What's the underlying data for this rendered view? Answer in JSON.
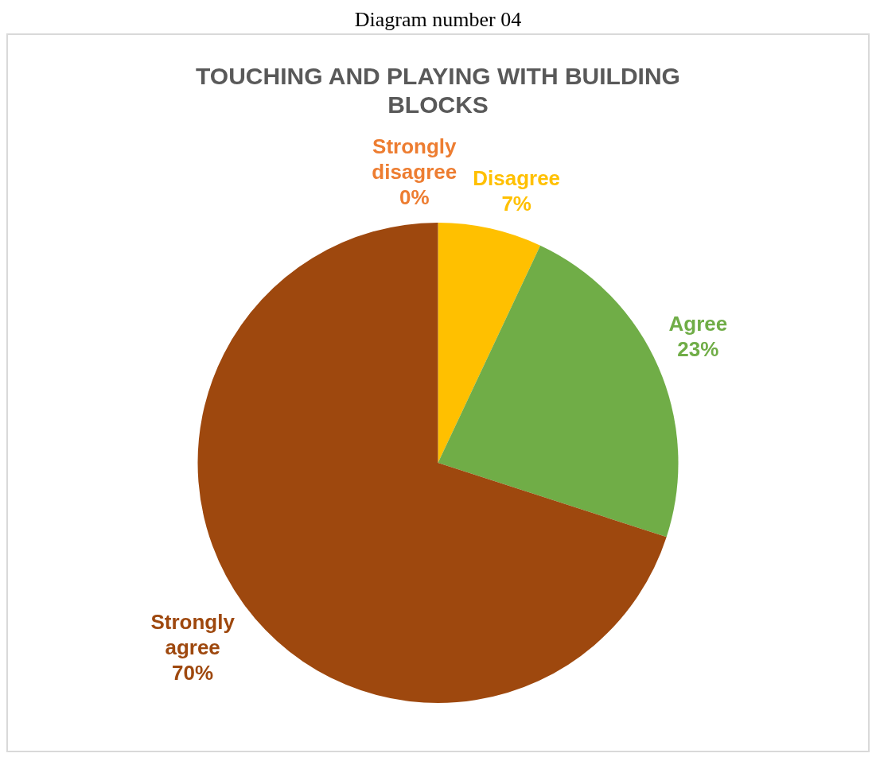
{
  "chart_data": {
    "type": "pie",
    "title": "TOUCHING AND PLAYING WITH BUILDING BLOCKS",
    "annotations": [
      "Diagram number 04"
    ],
    "categories": [
      "Strongly disagree",
      "Disagree",
      "Agree",
      "Strongly agree"
    ],
    "values": [
      0,
      7,
      23,
      70
    ],
    "value_labels": [
      "0%",
      "7%",
      "23%",
      "70%"
    ],
    "colors": [
      "#ed7d31",
      "#ffc000",
      "#70ad47",
      "#9e480e"
    ]
  }
}
